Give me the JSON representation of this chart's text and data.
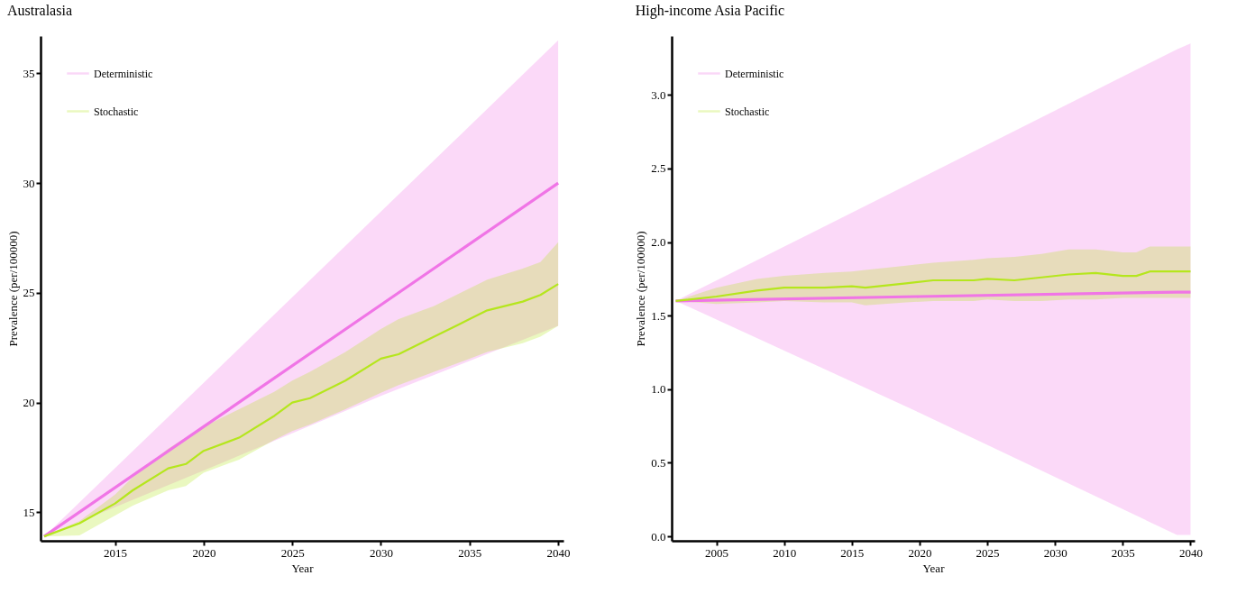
{
  "chart_data": [
    {
      "type": "line",
      "title": "Australasia",
      "xlabel": "Year",
      "ylabel": "Prevalence (per/100000)",
      "legend": "top left",
      "xlim": [
        2010.8,
        2040.3
      ],
      "ylim": [
        13.7,
        36.7
      ],
      "xticks": [
        2015,
        2020,
        2025,
        2030,
        2035,
        2040
      ],
      "yticks": [
        15,
        20,
        25,
        30,
        35
      ],
      "series": [
        {
          "name": "Deterministic",
          "color": "#f075e6",
          "x": [
            2011,
            2020,
            2030,
            2040
          ],
          "values": [
            13.9,
            18.9,
            24.45,
            30.0
          ],
          "lower": [
            13.9,
            16.9,
            20.3,
            23.5
          ],
          "upper": [
            13.9,
            20.9,
            28.7,
            36.5
          ]
        },
        {
          "name": "Stochastic",
          "color": "#b5e61d",
          "x": [
            2011,
            2013,
            2015,
            2016,
            2018,
            2019,
            2020,
            2022,
            2024,
            2025,
            2026,
            2028,
            2030,
            2031,
            2033,
            2035,
            2036,
            2038,
            2039,
            2040
          ],
          "values": [
            13.9,
            14.5,
            15.4,
            16.0,
            17.0,
            17.2,
            17.8,
            18.4,
            19.4,
            20.0,
            20.2,
            21.0,
            22.0,
            22.2,
            23.0,
            23.8,
            24.2,
            24.6,
            24.9,
            25.4
          ],
          "lower": [
            13.9,
            13.95,
            14.85,
            15.3,
            16.0,
            16.2,
            16.8,
            17.4,
            18.3,
            18.7,
            19.0,
            19.7,
            20.45,
            20.8,
            21.4,
            22.0,
            22.3,
            22.7,
            23.0,
            23.5
          ],
          "upper": [
            13.9,
            14.6,
            15.8,
            16.6,
            17.9,
            18.4,
            18.9,
            19.7,
            20.5,
            21.0,
            21.4,
            22.3,
            23.35,
            23.8,
            24.4,
            25.2,
            25.6,
            26.1,
            26.4,
            27.3
          ]
        }
      ]
    },
    {
      "type": "line",
      "title": "High-income Asia Pacific",
      "xlabel": "Year",
      "ylabel": "Prevalence (per/100000)",
      "legend": "top left",
      "xlim": [
        2001.7,
        2040.3
      ],
      "ylim": [
        -0.03,
        3.4
      ],
      "xticks": [
        2005,
        2010,
        2015,
        2020,
        2025,
        2030,
        2035,
        2040
      ],
      "yticks": [
        {
          "value": 0,
          "label": "0.0"
        },
        0.5,
        {
          "value": 1,
          "label": "1.0"
        },
        1.5,
        {
          "value": 2,
          "label": "2.0"
        },
        2.5,
        {
          "value": 3,
          "label": "3.0"
        }
      ],
      "series": [
        {
          "name": "Deterministic",
          "color": "#f075e6",
          "x": [
            2002,
            2020,
            2039,
            2040
          ],
          "values": [
            1.6,
            1.63,
            1.66,
            1.66
          ],
          "lower": [
            1.6,
            0.84,
            0.01,
            0.01
          ],
          "upper": [
            1.6,
            2.43,
            3.31,
            3.35
          ]
        },
        {
          "name": "Stochastic",
          "color": "#b5e61d",
          "x": [
            2002,
            2005,
            2008,
            2010,
            2013,
            2015,
            2016,
            2019,
            2021,
            2024,
            2025,
            2027,
            2029,
            2031,
            2033,
            2035,
            2036,
            2037,
            2040
          ],
          "values": [
            1.6,
            1.63,
            1.67,
            1.69,
            1.69,
            1.7,
            1.69,
            1.72,
            1.74,
            1.74,
            1.75,
            1.74,
            1.76,
            1.78,
            1.79,
            1.77,
            1.77,
            1.8,
            1.8
          ],
          "lower": [
            1.6,
            1.58,
            1.59,
            1.6,
            1.59,
            1.59,
            1.57,
            1.59,
            1.6,
            1.6,
            1.61,
            1.6,
            1.6,
            1.61,
            1.61,
            1.62,
            1.62,
            1.62,
            1.62
          ],
          "upper": [
            1.6,
            1.69,
            1.75,
            1.77,
            1.79,
            1.8,
            1.81,
            1.84,
            1.86,
            1.88,
            1.89,
            1.9,
            1.92,
            1.95,
            1.95,
            1.93,
            1.93,
            1.97,
            1.97
          ]
        }
      ]
    }
  ]
}
